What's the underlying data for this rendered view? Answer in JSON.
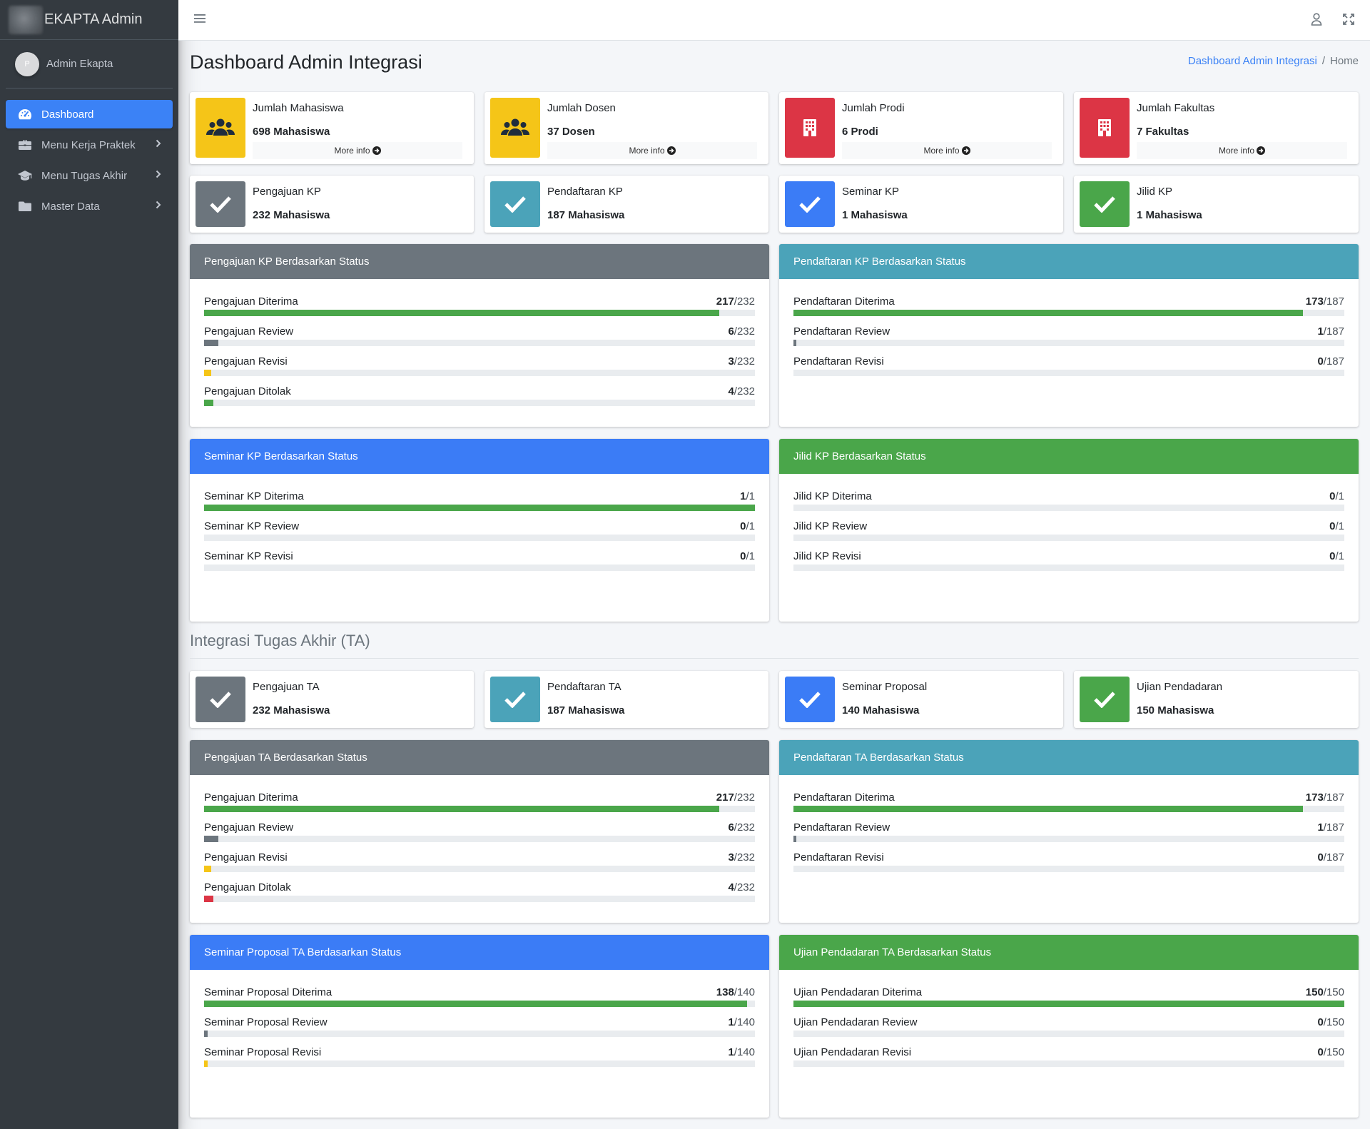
{
  "brand": {
    "name": "EKAPTA Admin"
  },
  "user": {
    "initial": "P",
    "name": "Admin Ekapta"
  },
  "sidebar": {
    "items": [
      {
        "label": "Dashboard",
        "icon": "dashboard-icon"
      },
      {
        "label": "Menu Kerja Praktek",
        "icon": "briefcase-icon"
      },
      {
        "label": "Menu Tugas Akhir",
        "icon": "graduation-cap-icon"
      },
      {
        "label": "Master Data",
        "icon": "folder-icon"
      }
    ]
  },
  "header": {
    "title": "Dashboard Admin Integrasi",
    "breadcrumb": [
      "Dashboard Admin Integrasi",
      "Home"
    ]
  },
  "colors": {
    "yellow": "#f5c518",
    "red": "#dc3545",
    "gray": "#6c757d",
    "teal": "#4ba3b9",
    "blue": "#3b7cf6",
    "green": "#4aa64a",
    "sidebar": "#343a40"
  },
  "stats": [
    {
      "label": "Jumlah Mahasiswa",
      "value": "698 Mahasiswa",
      "more": "More info",
      "icon": "users-icon"
    },
    {
      "label": "Jumlah Dosen",
      "value": "37 Dosen",
      "more": "More info",
      "icon": "users-icon"
    },
    {
      "label": "Jumlah Prodi",
      "value": "6 Prodi",
      "more": "More info",
      "icon": "building-icon"
    },
    {
      "label": "Jumlah Fakultas",
      "value": "7 Fakultas",
      "more": "More info",
      "icon": "building-icon"
    }
  ],
  "kp_boxes": [
    {
      "label": "Pengajuan KP",
      "value": "232 Mahasiswa",
      "icon": "check-icon"
    },
    {
      "label": "Pendaftaran KP",
      "value": "187 Mahasiswa",
      "icon": "check-icon"
    },
    {
      "label": "Seminar KP",
      "value": "1 Mahasiswa",
      "icon": "check-icon"
    },
    {
      "label": "Jilid KP",
      "value": "1 Mahasiswa",
      "icon": "check-icon"
    }
  ],
  "kp_cards": [
    {
      "title": "Pengajuan KP Berdasarkan Status",
      "rows": [
        {
          "label": "Pengajuan Diterima",
          "count": "217",
          "total": "/232",
          "fraction": 0.935
        },
        {
          "label": "Pengajuan Review",
          "count": "6",
          "total": "/232",
          "fraction": 0.026
        },
        {
          "label": "Pengajuan Revisi",
          "count": "3",
          "total": "/232",
          "fraction": 0.013
        },
        {
          "label": "Pengajuan Ditolak",
          "count": "4",
          "total": "/232",
          "fraction": 0.017
        }
      ]
    },
    {
      "title": "Pendaftaran KP Berdasarkan Status",
      "rows": [
        {
          "label": "Pendaftaran Diterima",
          "count": "173",
          "total": "/187",
          "fraction": 0.925
        },
        {
          "label": "Pendaftaran Review",
          "count": "1",
          "total": "/187",
          "fraction": 0.005
        },
        {
          "label": "Pendaftaran Revisi",
          "count": "0",
          "total": "/187",
          "fraction": 0
        }
      ]
    },
    {
      "title": "Seminar KP Berdasarkan Status",
      "rows": [
        {
          "label": "Seminar KP Diterima",
          "count": "1",
          "total": "/1",
          "fraction": 1
        },
        {
          "label": "Seminar KP Review",
          "count": "0",
          "total": "/1",
          "fraction": 0
        },
        {
          "label": "Seminar KP Revisi",
          "count": "0",
          "total": "/1",
          "fraction": 0
        }
      ]
    },
    {
      "title": "Jilid KP Berdasarkan Status",
      "rows": [
        {
          "label": "Jilid KP Diterima",
          "count": "0",
          "total": "/1",
          "fraction": 0
        },
        {
          "label": "Jilid KP Review",
          "count": "0",
          "total": "/1",
          "fraction": 0
        },
        {
          "label": "Jilid KP Revisi",
          "count": "0",
          "total": "/1",
          "fraction": 0
        }
      ]
    }
  ],
  "ta_section": {
    "title": "Integrasi Tugas Akhir (TA)"
  },
  "ta_boxes": [
    {
      "label": "Pengajuan TA",
      "value": "232 Mahasiswa",
      "icon": "check-icon"
    },
    {
      "label": "Pendaftaran TA",
      "value": "187 Mahasiswa",
      "icon": "check-icon"
    },
    {
      "label": "Seminar Proposal",
      "value": "140 Mahasiswa",
      "icon": "check-icon"
    },
    {
      "label": "Ujian Pendadaran",
      "value": "150 Mahasiswa",
      "icon": "check-icon"
    }
  ],
  "ta_cards": [
    {
      "title": "Pengajuan TA Berdasarkan Status",
      "rows": [
        {
          "label": "Pengajuan Diterima",
          "count": "217",
          "total": "/232",
          "fraction": 0.935
        },
        {
          "label": "Pengajuan Review",
          "count": "6",
          "total": "/232",
          "fraction": 0.026
        },
        {
          "label": "Pengajuan Revisi",
          "count": "3",
          "total": "/232",
          "fraction": 0.013
        },
        {
          "label": "Pengajuan Ditolak",
          "count": "4",
          "total": "/232",
          "fraction": 0.017
        }
      ]
    },
    {
      "title": "Pendaftaran TA Berdasarkan Status",
      "rows": [
        {
          "label": "Pendaftaran Diterima",
          "count": "173",
          "total": "/187",
          "fraction": 0.925
        },
        {
          "label": "Pendaftaran Review",
          "count": "1",
          "total": "/187",
          "fraction": 0.005
        },
        {
          "label": "Pendaftaran Revisi",
          "count": "0",
          "total": "/187",
          "fraction": 0
        }
      ]
    },
    {
      "title": "Seminar Proposal TA Berdasarkan Status",
      "rows": [
        {
          "label": "Seminar Proposal Diterima",
          "count": "138",
          "total": "/140",
          "fraction": 0.986
        },
        {
          "label": "Seminar Proposal Review",
          "count": "1",
          "total": "/140",
          "fraction": 0.007
        },
        {
          "label": "Seminar Proposal Revisi",
          "count": "1",
          "total": "/140",
          "fraction": 0.007
        }
      ]
    },
    {
      "title": "Ujian Pendadaran TA Berdasarkan Status",
      "rows": [
        {
          "label": "Ujian Pendadaran Diterima",
          "count": "150",
          "total": "/150",
          "fraction": 1
        },
        {
          "label": "Ujian Pendadaran Review",
          "count": "0",
          "total": "/150",
          "fraction": 0
        },
        {
          "label": "Ujian Pendadaran Revisi",
          "count": "0",
          "total": "/150",
          "fraction": 0
        }
      ]
    }
  ]
}
